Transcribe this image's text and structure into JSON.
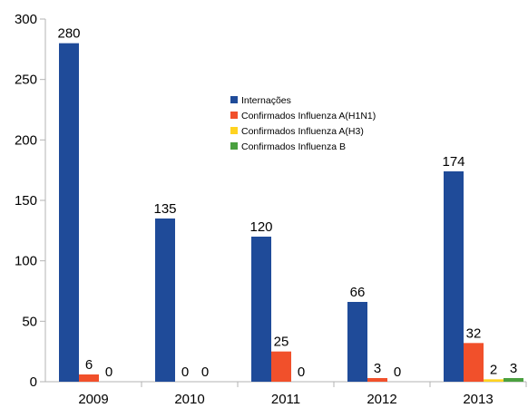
{
  "chart_data": {
    "type": "bar",
    "categories": [
      "2009",
      "2010",
      "2011",
      "2012",
      "2013"
    ],
    "series": [
      {
        "name": "Internações",
        "values": [
          280,
          135,
          120,
          66,
          174
        ],
        "color": "#1f4b99"
      },
      {
        "name": "Confirmados Influenza A(H1N1)",
        "values": [
          6,
          0,
          25,
          3,
          32
        ],
        "color": "#f1502b"
      },
      {
        "name": "Confirmados Influenza A(H3)",
        "values": [
          0,
          0,
          0,
          0,
          2
        ],
        "color": "#ffd320"
      },
      {
        "name": "Confirmados Influenza B",
        "values": [
          0,
          0,
          0,
          0,
          3
        ],
        "color": "#4aa03f"
      }
    ],
    "data_labels": [
      [
        "280",
        "6",
        "0",
        null
      ],
      [
        "135",
        "0",
        "0",
        null
      ],
      [
        "120",
        "25",
        "0",
        null
      ],
      [
        "66",
        "3",
        "0",
        null
      ],
      [
        "174",
        "32",
        "2",
        "3"
      ]
    ],
    "yticks": [
      0,
      50,
      100,
      150,
      200,
      250,
      300
    ],
    "ylim": [
      0,
      300
    ],
    "grid": false,
    "legend_position": "center-right"
  }
}
